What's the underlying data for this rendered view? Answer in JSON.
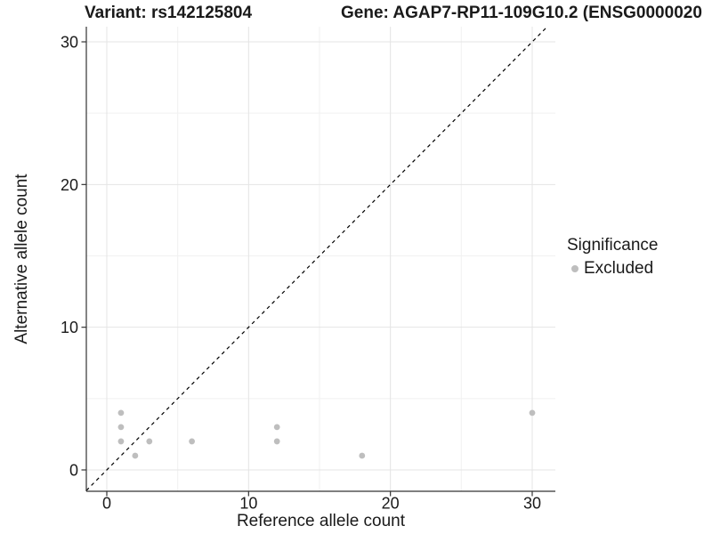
{
  "chart_data": {
    "type": "scatter",
    "title_left": "Variant: rs142125804",
    "title_right": "Gene: AGAP7-RP11-109G10.2 (ENSG0000020",
    "xlabel": "Reference allele count",
    "ylabel": "Alternative allele count",
    "x_ticks": [
      0,
      10,
      20,
      30
    ],
    "y_ticks": [
      0,
      10,
      20,
      30
    ],
    "x_minor_ticks": [
      5,
      15,
      25
    ],
    "y_minor_ticks": [
      5,
      15,
      25
    ],
    "xlim": [
      -1.5,
      31.6
    ],
    "ylim": [
      -1.5,
      31.1
    ],
    "grid": "on",
    "identity_line": {
      "style": "dashed",
      "color": "#000000"
    },
    "series": [
      {
        "name": "Excluded",
        "color": "#bebebe",
        "points": [
          {
            "x": 1,
            "y": 4
          },
          {
            "x": 1,
            "y": 3
          },
          {
            "x": 1,
            "y": 2
          },
          {
            "x": 2,
            "y": 1
          },
          {
            "x": 3,
            "y": 2
          },
          {
            "x": 6,
            "y": 2
          },
          {
            "x": 12,
            "y": 3
          },
          {
            "x": 12,
            "y": 2
          },
          {
            "x": 18,
            "y": 1
          },
          {
            "x": 30,
            "y": 4
          }
        ]
      }
    ],
    "legend": {
      "title": "Significance",
      "position": "right",
      "entries": [
        {
          "label": "Excluded",
          "color": "#bebebe",
          "marker": "dot"
        }
      ]
    }
  },
  "colors": {
    "background": "#ffffff",
    "grid_major": "#e4e4e4",
    "grid_minor": "#f1f1f1",
    "axis_line": "#333333",
    "tick_text": "#1a1a1a",
    "point": "#bebebe",
    "identity_line": "#000000"
  }
}
